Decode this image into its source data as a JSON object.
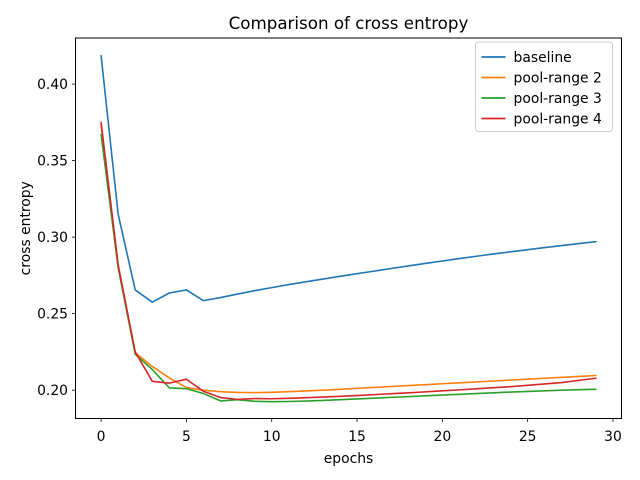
{
  "figure": {
    "background": "#ffffff",
    "spine_color": "#000000",
    "legend_border_color": "#cccccc",
    "legend_background": "rgba(255,255,255,0.8)"
  },
  "chart_data": {
    "type": "line",
    "title": "Comparison of cross entropy",
    "xlabel": "epochs",
    "ylabel": "cross entropy",
    "xlim": [
      -1.5,
      30.5
    ],
    "ylim": [
      0.1815,
      0.4301
    ],
    "xticks": [
      0,
      5,
      10,
      15,
      20,
      25,
      30
    ],
    "yticks": [
      0.2,
      0.25,
      0.3,
      0.35,
      0.4
    ],
    "grid": false,
    "legend_position": "upper right",
    "x": [
      0,
      1,
      2,
      3,
      4,
      5,
      6,
      7,
      8,
      9,
      10,
      11,
      12,
      13,
      14,
      15,
      16,
      17,
      18,
      19,
      20,
      21,
      22,
      23,
      24,
      25,
      26,
      27,
      28,
      29
    ],
    "series": [
      {
        "name": "baseline",
        "color": "#1f77b4",
        "values": [
          0.4185,
          0.315,
          0.2655,
          0.2575,
          0.2635,
          0.2655,
          0.2585,
          0.2605,
          0.2628,
          0.265,
          0.267,
          0.269,
          0.2708,
          0.2726,
          0.2744,
          0.2761,
          0.2778,
          0.2795,
          0.2812,
          0.2828,
          0.2844,
          0.286,
          0.2875,
          0.289,
          0.2904,
          0.2918,
          0.2932,
          0.2945,
          0.2958,
          0.297
        ]
      },
      {
        "name": "pool-range 2",
        "color": "#ff7f0e",
        "values": [
          0.3735,
          0.281,
          0.2245,
          0.2155,
          0.208,
          0.2017,
          0.2,
          0.199,
          0.1985,
          0.1984,
          0.1986,
          0.199,
          0.1995,
          0.2,
          0.2006,
          0.2012,
          0.2018,
          0.2024,
          0.203,
          0.2036,
          0.2042,
          0.2048,
          0.2054,
          0.206,
          0.2066,
          0.2072,
          0.2078,
          0.2084,
          0.209,
          0.2096
        ]
      },
      {
        "name": "pool-range 3",
        "color": "#2ca02c",
        "values": [
          0.367,
          0.28,
          0.2235,
          0.2135,
          0.2015,
          0.201,
          0.1978,
          0.193,
          0.1938,
          0.1927,
          0.1925,
          0.1926,
          0.1929,
          0.1933,
          0.1938,
          0.1943,
          0.1948,
          0.1953,
          0.1958,
          0.1963,
          0.1968,
          0.1973,
          0.1978,
          0.1983,
          0.1988,
          0.1992,
          0.1996,
          0.2,
          0.2003,
          0.2006
        ]
      },
      {
        "name": "pool-range 4",
        "color": "#d62728",
        "values": [
          0.375,
          0.282,
          0.225,
          0.2058,
          0.2046,
          0.2072,
          0.1992,
          0.1952,
          0.194,
          0.1945,
          0.1944,
          0.1947,
          0.1951,
          0.1955,
          0.196,
          0.1965,
          0.1971,
          0.1977,
          0.1983,
          0.1989,
          0.1996,
          0.2002,
          0.2009,
          0.2016,
          0.2023,
          0.2032,
          0.2041,
          0.205,
          0.2064,
          0.2078
        ]
      }
    ]
  }
}
